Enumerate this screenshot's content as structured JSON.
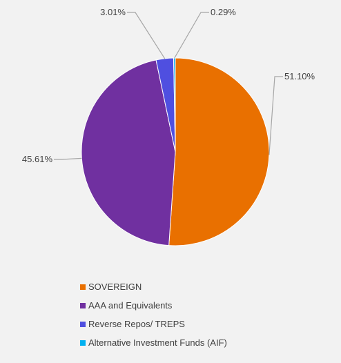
{
  "chart_data": {
    "type": "pie",
    "title": "",
    "slices": [
      {
        "name": "SOVEREIGN",
        "value": 51.1,
        "label": "51.10%",
        "color": "#e97000"
      },
      {
        "name": "AAA and Equivalents",
        "value": 45.61,
        "label": "45.61%",
        "color": "#7030a0"
      },
      {
        "name": "Reverse Repos/ TREPS",
        "value": 3.01,
        "label": "3.01%",
        "color": "#4f4fe0"
      },
      {
        "name": "Alternative Investment Funds (AIF)",
        "value": 0.29,
        "label": "0.29%",
        "color": "#00b0f0"
      }
    ],
    "start_angle_deg": 0,
    "direction": "clockwise",
    "legend_position": "bottom-left",
    "leader_line_color": "#a6a6a6"
  }
}
